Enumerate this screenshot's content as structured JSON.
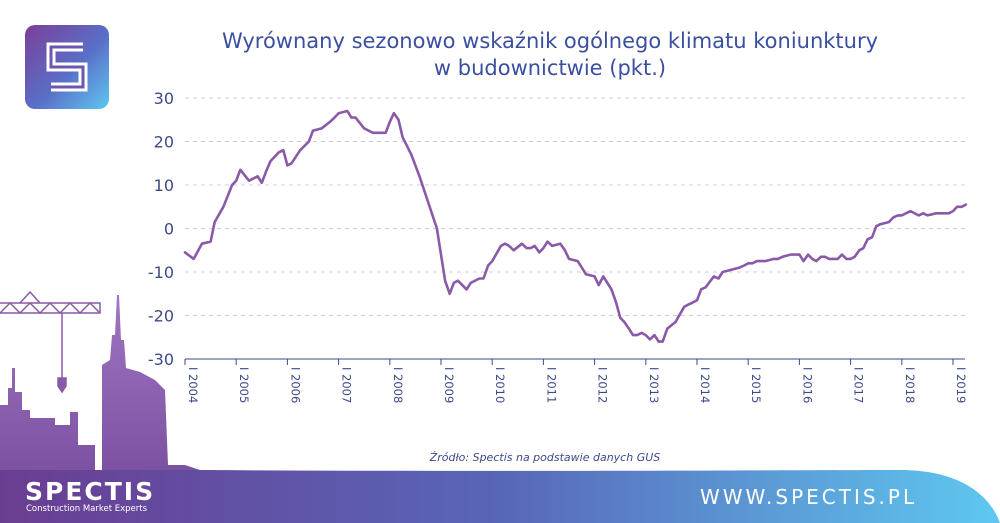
{
  "title_lines": [
    "Wyrównany sezonowo wskaźnik ogólnego klimatu koniunktury",
    "w budownictwie (pkt.)"
  ],
  "source": "Źródło: Spectis na podstawie danych GUS",
  "brand": {
    "name": "SPECTIS",
    "tagline": "Construction Market Experts",
    "website": "WWW.SPECTIS.PL",
    "logo_icon": "spectis-s-logo-icon"
  },
  "colors": {
    "line": "#8a5aa8",
    "title": "#3a4fa0",
    "axis_text": "#3d4a8a",
    "grid": "#c8cee0",
    "footer_purple": "#6a3d92",
    "footer_blue": "#5aa8e8"
  },
  "chart_data": {
    "type": "line",
    "title": "Wyrównany sezonowo wskaźnik ogólnego klimatu koniunktury w budownictwie (pkt.)",
    "xlabel": "",
    "ylabel": "",
    "ylim": [
      -30,
      30
    ],
    "yticks": [
      30,
      20,
      10,
      0,
      -10,
      -20,
      -30
    ],
    "xlim": [
      2004.0,
      2019.25
    ],
    "xticks": [
      "I 2004",
      "I 2005",
      "I 2006",
      "I 2007",
      "I 2008",
      "I 2009",
      "I 2010",
      "I 2011",
      "I 2012",
      "I 2013",
      "I 2014",
      "I 2015",
      "I 2016",
      "I 2017",
      "I 2018",
      "I 2019"
    ],
    "grid": true,
    "legend": "none",
    "series": [
      {
        "values": [
          [
            2004.0,
            -5.5
          ],
          [
            2004.17,
            -7
          ],
          [
            2004.33,
            -3.5
          ],
          [
            2004.5,
            -3
          ],
          [
            2004.58,
            1.5
          ],
          [
            2004.75,
            5
          ],
          [
            2004.92,
            10
          ],
          [
            2005.0,
            11
          ],
          [
            2005.08,
            13.5
          ],
          [
            2005.25,
            11
          ],
          [
            2005.42,
            12
          ],
          [
            2005.5,
            10.5
          ],
          [
            2005.58,
            13
          ],
          [
            2005.67,
            15.5
          ],
          [
            2005.83,
            17.5
          ],
          [
            2005.92,
            18
          ],
          [
            2006.0,
            14.5
          ],
          [
            2006.08,
            15
          ],
          [
            2006.25,
            18
          ],
          [
            2006.42,
            20
          ],
          [
            2006.5,
            22.5
          ],
          [
            2006.67,
            23
          ],
          [
            2006.83,
            24.5
          ],
          [
            2006.92,
            25.5
          ],
          [
            2007.0,
            26.5
          ],
          [
            2007.17,
            27
          ],
          [
            2007.25,
            25.5
          ],
          [
            2007.33,
            25.5
          ],
          [
            2007.5,
            23
          ],
          [
            2007.67,
            22
          ],
          [
            2007.83,
            22
          ],
          [
            2007.92,
            22
          ],
          [
            2008.0,
            24.5
          ],
          [
            2008.08,
            26.5
          ],
          [
            2008.17,
            25
          ],
          [
            2008.25,
            21
          ],
          [
            2008.42,
            17
          ],
          [
            2008.58,
            12
          ],
          [
            2008.75,
            6
          ],
          [
            2008.92,
            0
          ],
          [
            2009.0,
            -6
          ],
          [
            2009.08,
            -12
          ],
          [
            2009.17,
            -15
          ],
          [
            2009.25,
            -12.5
          ],
          [
            2009.33,
            -12
          ],
          [
            2009.5,
            -14
          ],
          [
            2009.58,
            -12.5
          ],
          [
            2009.75,
            -11.5
          ],
          [
            2009.83,
            -11.5
          ],
          [
            2009.92,
            -8.5
          ],
          [
            2010.0,
            -7.5
          ],
          [
            2010.17,
            -4
          ],
          [
            2010.25,
            -3.5
          ],
          [
            2010.33,
            -4
          ],
          [
            2010.42,
            -5
          ],
          [
            2010.58,
            -3.5
          ],
          [
            2010.67,
            -4.5
          ],
          [
            2010.75,
            -4.5
          ],
          [
            2010.83,
            -4
          ],
          [
            2010.92,
            -5.5
          ],
          [
            2011.0,
            -4.5
          ],
          [
            2011.08,
            -3
          ],
          [
            2011.17,
            -4
          ],
          [
            2011.33,
            -3.5
          ],
          [
            2011.42,
            -5
          ],
          [
            2011.5,
            -7
          ],
          [
            2011.67,
            -7.5
          ],
          [
            2011.75,
            -9
          ],
          [
            2011.83,
            -10.5
          ],
          [
            2012.0,
            -11
          ],
          [
            2012.08,
            -13
          ],
          [
            2012.17,
            -11
          ],
          [
            2012.33,
            -14
          ],
          [
            2012.42,
            -17
          ],
          [
            2012.5,
            -20.5
          ],
          [
            2012.58,
            -21.5
          ],
          [
            2012.67,
            -23
          ],
          [
            2012.75,
            -24.5
          ],
          [
            2012.83,
            -24.5
          ],
          [
            2012.92,
            -24
          ],
          [
            2013.0,
            -24.5
          ],
          [
            2013.08,
            -25.5
          ],
          [
            2013.17,
            -24.5
          ],
          [
            2013.25,
            -26
          ],
          [
            2013.33,
            -26
          ],
          [
            2013.42,
            -23
          ],
          [
            2013.58,
            -21.5
          ],
          [
            2013.75,
            -18
          ],
          [
            2013.83,
            -17.5
          ],
          [
            2013.92,
            -17
          ],
          [
            2014.0,
            -16.5
          ],
          [
            2014.08,
            -14
          ],
          [
            2014.17,
            -13.5
          ],
          [
            2014.33,
            -11
          ],
          [
            2014.42,
            -11.5
          ],
          [
            2014.5,
            -10
          ],
          [
            2014.67,
            -9.5
          ],
          [
            2014.83,
            -9
          ],
          [
            2014.92,
            -8.5
          ],
          [
            2015.0,
            -8
          ],
          [
            2015.08,
            -8
          ],
          [
            2015.17,
            -7.5
          ],
          [
            2015.33,
            -7.5
          ],
          [
            2015.5,
            -7
          ],
          [
            2015.58,
            -7
          ],
          [
            2015.67,
            -6.5
          ],
          [
            2015.83,
            -6
          ],
          [
            2015.92,
            -6
          ],
          [
            2016.0,
            -6
          ],
          [
            2016.08,
            -7.5
          ],
          [
            2016.17,
            -6
          ],
          [
            2016.25,
            -7
          ],
          [
            2016.33,
            -7.5
          ],
          [
            2016.42,
            -6.5
          ],
          [
            2016.5,
            -6.5
          ],
          [
            2016.58,
            -7
          ],
          [
            2016.75,
            -7
          ],
          [
            2016.83,
            -6
          ],
          [
            2016.92,
            -7
          ],
          [
            2017.0,
            -7
          ],
          [
            2017.08,
            -6.5
          ],
          [
            2017.17,
            -5
          ],
          [
            2017.25,
            -4.5
          ],
          [
            2017.33,
            -2.5
          ],
          [
            2017.42,
            -2
          ],
          [
            2017.5,
            0.5
          ],
          [
            2017.58,
            1
          ],
          [
            2017.75,
            1.5
          ],
          [
            2017.83,
            2.5
          ],
          [
            2017.92,
            3
          ],
          [
            2018.0,
            3
          ],
          [
            2018.08,
            3.5
          ],
          [
            2018.17,
            4
          ],
          [
            2018.33,
            3
          ],
          [
            2018.42,
            3.5
          ],
          [
            2018.5,
            3
          ],
          [
            2018.67,
            3.5
          ],
          [
            2018.83,
            3.5
          ],
          [
            2018.92,
            3.5
          ],
          [
            2019.0,
            4
          ],
          [
            2019.08,
            5
          ],
          [
            2019.17,
            5
          ],
          [
            2019.25,
            5.5
          ]
        ]
      }
    ]
  }
}
